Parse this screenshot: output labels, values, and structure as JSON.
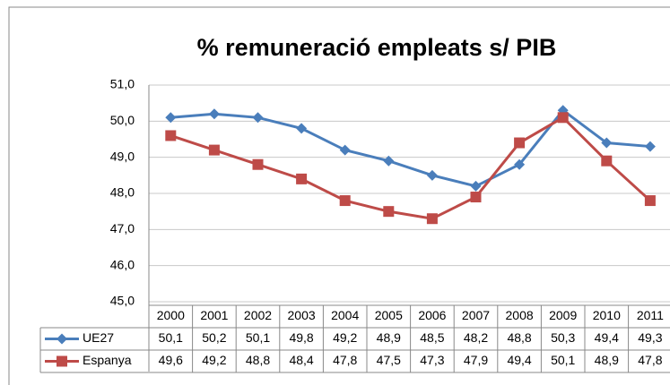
{
  "chart_data": {
    "type": "line",
    "title": "% remuneració empleats s/ PIB",
    "categories": [
      "2000",
      "2001",
      "2002",
      "2003",
      "2004",
      "2005",
      "2006",
      "2007",
      "2008",
      "2009",
      "2010",
      "2011"
    ],
    "series": [
      {
        "name": "UE27",
        "color": "#4a7ebb",
        "marker": "diamond",
        "values": [
          50.1,
          50.2,
          50.1,
          49.8,
          49.2,
          48.9,
          48.5,
          48.2,
          48.8,
          50.3,
          49.4,
          49.3
        ],
        "value_labels": [
          "50,1",
          "50,2",
          "50,1",
          "49,8",
          "49,2",
          "48,9",
          "48,5",
          "48,2",
          "48,8",
          "50,3",
          "49,4",
          "49,3"
        ]
      },
      {
        "name": "Espanya",
        "color": "#be4b48",
        "marker": "square",
        "values": [
          49.6,
          49.2,
          48.8,
          48.4,
          47.8,
          47.5,
          47.3,
          47.9,
          49.4,
          50.1,
          48.9,
          47.8
        ],
        "value_labels": [
          "49,6",
          "49,2",
          "48,8",
          "48,4",
          "47,8",
          "47,5",
          "47,3",
          "47,9",
          "49,4",
          "50,1",
          "48,9",
          "47,8"
        ]
      }
    ],
    "ylim": [
      45,
      51
    ],
    "yticks": [
      {
        "value": 45,
        "label": "45,0"
      },
      {
        "value": 46,
        "label": "46,0"
      },
      {
        "value": 47,
        "label": "47,0"
      },
      {
        "value": 48,
        "label": "48,0"
      },
      {
        "value": 49,
        "label": "49,0"
      },
      {
        "value": 50,
        "label": "50,0"
      },
      {
        "value": 51,
        "label": "51,0"
      }
    ],
    "grid": true
  }
}
